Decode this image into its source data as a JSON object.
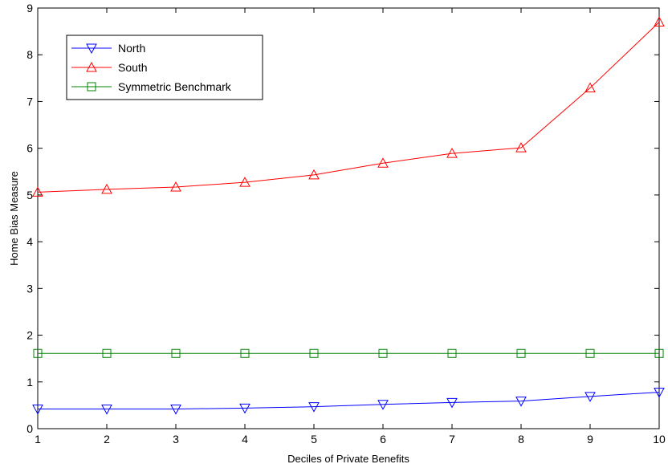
{
  "chart_data": {
    "type": "line",
    "xlabel": "Deciles of Private Benefits",
    "ylabel": "Home Bias Measure",
    "xlim": [
      1,
      10
    ],
    "ylim": [
      0,
      9
    ],
    "x": [
      1,
      2,
      3,
      4,
      5,
      6,
      7,
      8,
      9,
      10
    ],
    "x_ticks": [
      "1",
      "2",
      "3",
      "4",
      "5",
      "6",
      "7",
      "8",
      "9",
      "10"
    ],
    "y_ticks": [
      "0",
      "1",
      "2",
      "3",
      "4",
      "5",
      "6",
      "7",
      "8",
      "9"
    ],
    "grid": false,
    "legend_position": "top-left",
    "series": [
      {
        "name": "North",
        "color": "#0000ff",
        "marker": "triangle-down",
        "values": [
          0.42,
          0.42,
          0.42,
          0.44,
          0.47,
          0.52,
          0.56,
          0.59,
          0.69,
          0.78
        ]
      },
      {
        "name": "South",
        "color": "#ff0000",
        "marker": "triangle-up",
        "values": [
          5.06,
          5.12,
          5.17,
          5.27,
          5.43,
          5.68,
          5.89,
          6.01,
          7.29,
          8.7
        ]
      },
      {
        "name": "Symmetric Benchmark",
        "color": "#008000",
        "marker": "square",
        "values": [
          1.61,
          1.61,
          1.61,
          1.61,
          1.61,
          1.61,
          1.61,
          1.61,
          1.61,
          1.61
        ]
      }
    ]
  }
}
